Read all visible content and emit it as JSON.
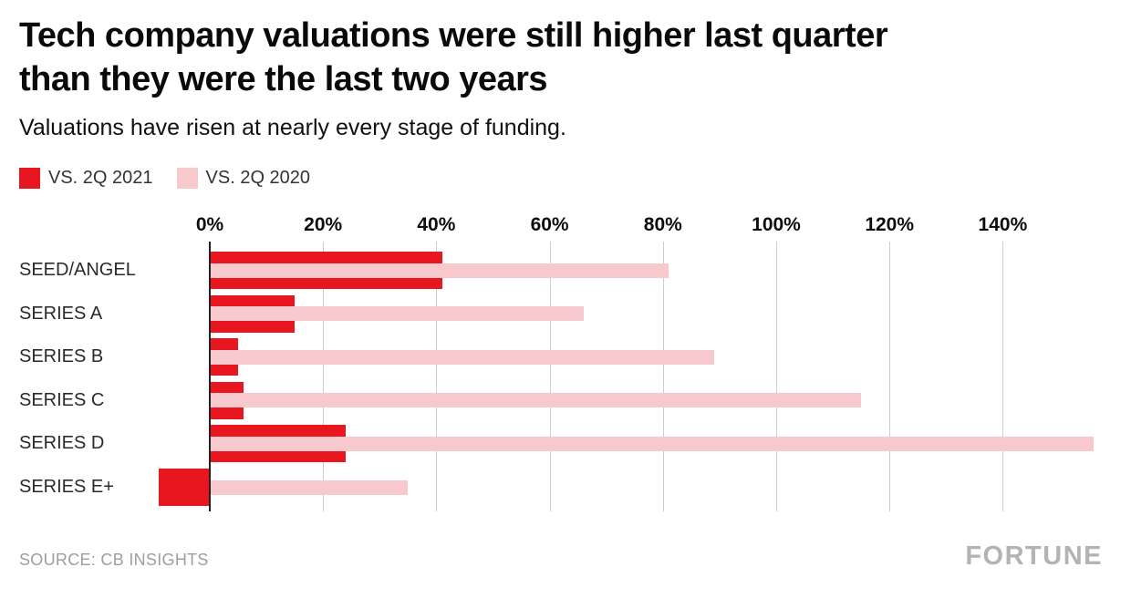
{
  "header": {
    "title_line1": "Tech company valuations were still higher last quarter",
    "title_line2": "than they were the last two years",
    "subtitle": "Valuations have risen at nearly every stage of funding."
  },
  "legend": [
    {
      "label": "VS. 2Q 2021",
      "color": "#e8171f"
    },
    {
      "label": "VS. 2Q 2020",
      "color": "#f7c9cc"
    }
  ],
  "chart_data": {
    "type": "bar",
    "orientation": "horizontal",
    "title": "Tech company valuations were still higher last quarter than they were the last two years",
    "subtitle": "Valuations have risen at nearly every stage of funding.",
    "categories": [
      "SEED/ANGEL",
      "SERIES A",
      "SERIES B",
      "SERIES C",
      "SERIES D",
      "SERIES E+"
    ],
    "series": [
      {
        "name": "VS. 2Q 2021",
        "color": "#e8171f",
        "values": [
          41,
          15,
          5,
          6,
          24,
          -9
        ]
      },
      {
        "name": "VS. 2Q 2020",
        "color": "#f7c9cc",
        "values": [
          81,
          66,
          89,
          115,
          156,
          35
        ]
      }
    ],
    "x_ticks": [
      "0%",
      "20%",
      "40%",
      "60%",
      "80%",
      "100%",
      "120%",
      "140%"
    ],
    "x_tick_values": [
      0,
      20,
      40,
      60,
      80,
      100,
      120,
      140
    ],
    "xlim": [
      -10,
      158
    ],
    "unit": "%",
    "grid": true,
    "legend_position": "top-left",
    "gridline_color": "#cccccc",
    "axis_color": "#222222",
    "source": "SOURCE: CB INSIGHTS"
  },
  "footer": {
    "source": "SOURCE: CB INSIGHTS",
    "brand": "FORTUNE"
  }
}
